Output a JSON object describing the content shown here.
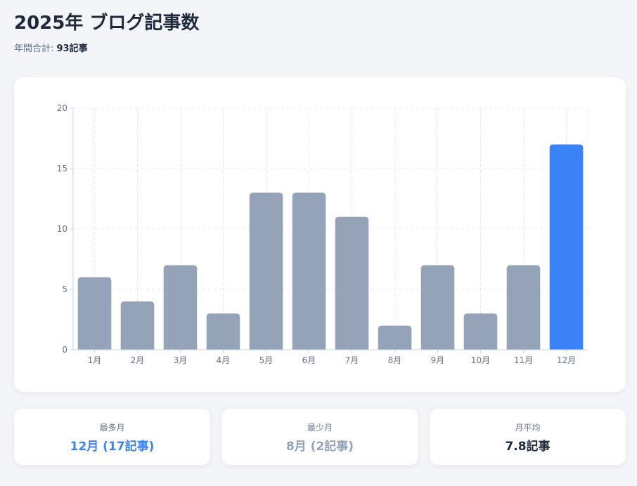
{
  "header": {
    "title": "2025年 ブログ記事数",
    "total_label": "年間合計: ",
    "total_value": "93記事"
  },
  "colors": {
    "bar_default": "#94a3b8",
    "bar_highlight": "#3b82f6",
    "grid": "#e8ecf1",
    "axis": "#cbd5e1",
    "tick_text": "#64748b"
  },
  "chart_data": {
    "type": "bar",
    "categories": [
      "1月",
      "2月",
      "3月",
      "4月",
      "5月",
      "6月",
      "7月",
      "8月",
      "9月",
      "10月",
      "11月",
      "12月"
    ],
    "values": [
      6,
      4,
      7,
      3,
      13,
      13,
      11,
      2,
      7,
      3,
      7,
      17
    ],
    "highlight_category": "12月",
    "ylim": [
      0,
      20
    ],
    "yticks": [
      0,
      5,
      10,
      15,
      20
    ],
    "grid": true,
    "legend": "none",
    "title": "",
    "xlabel": "",
    "ylabel": ""
  },
  "stats": {
    "max": {
      "label": "最多月",
      "value": "12月 (17記事)"
    },
    "min": {
      "label": "最少月",
      "value": "8月 (2記事)"
    },
    "avg": {
      "label": "月平均",
      "value": "7.8記事"
    }
  }
}
